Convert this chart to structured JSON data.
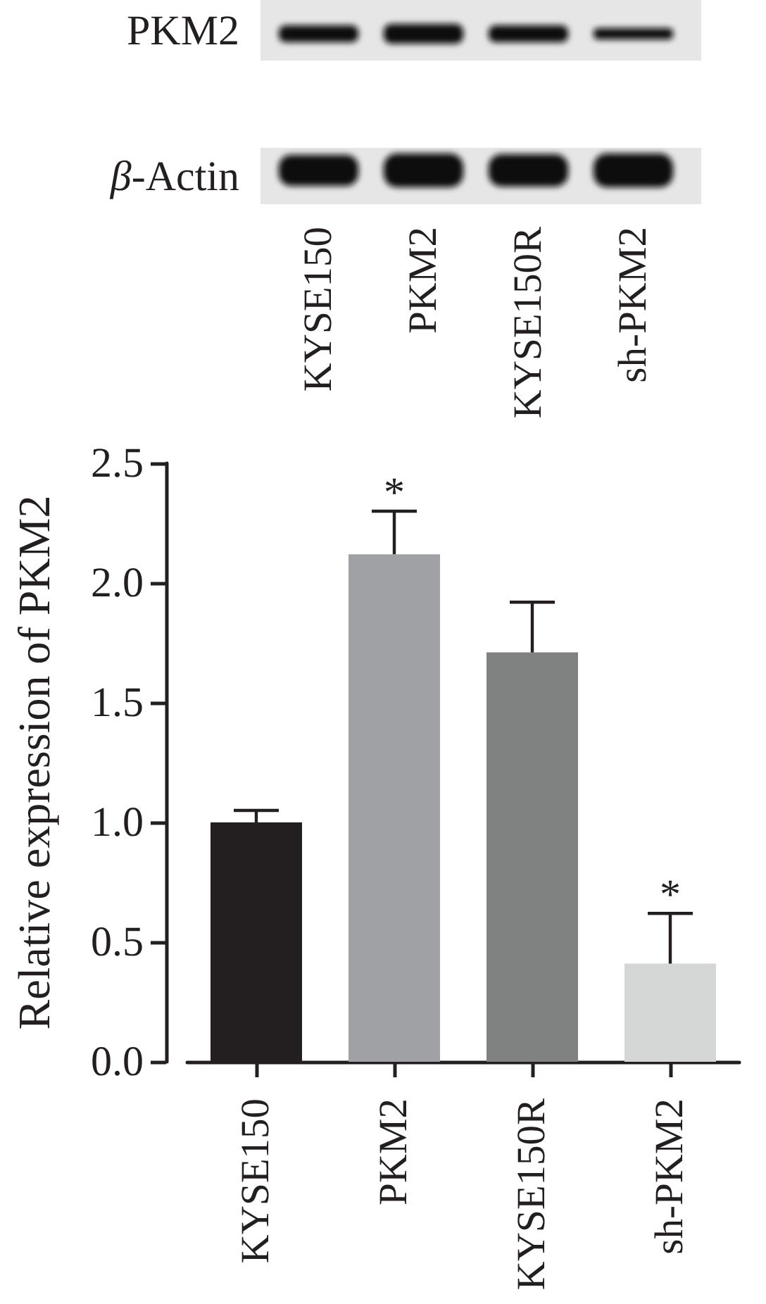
{
  "chart_data": [
    {
      "type": "other",
      "categories": [
        "KYSE150",
        "PKM2",
        "KYSE150R",
        "sh-PKM2"
      ],
      "annotations": [
        "PKM2",
        "β-Actin"
      ]
    },
    {
      "type": "bar",
      "categories": [
        "KYSE150",
        "PKM2",
        "KYSE150R",
        "sh-PKM2"
      ],
      "values": [
        1.0,
        2.12,
        1.71,
        0.41
      ],
      "colors": [
        "#231f20",
        "#a0a1a5",
        "#808281",
        "#d5d6d6"
      ],
      "errors": [
        [
          1.0,
          1.05
        ],
        [
          2.12,
          2.3
        ],
        [
          1.71,
          1.92
        ],
        [
          0.41,
          0.62
        ]
      ],
      "ylabel": "Relative expression of PKM2",
      "ylim": [
        0,
        2.5
      ],
      "yticks": [
        {
          "value": 0,
          "label": "0.0"
        },
        0.5,
        {
          "value": 1,
          "label": "1.0"
        },
        1.5,
        {
          "value": 2,
          "label": "2.0"
        },
        2.5
      ],
      "grid": false,
      "annotations": [
        {
          "text": "*",
          "x": "PKM2",
          "y": 2.3
        },
        {
          "text": "*",
          "x": "sh-PKM2",
          "y": 0.62
        }
      ]
    }
  ]
}
